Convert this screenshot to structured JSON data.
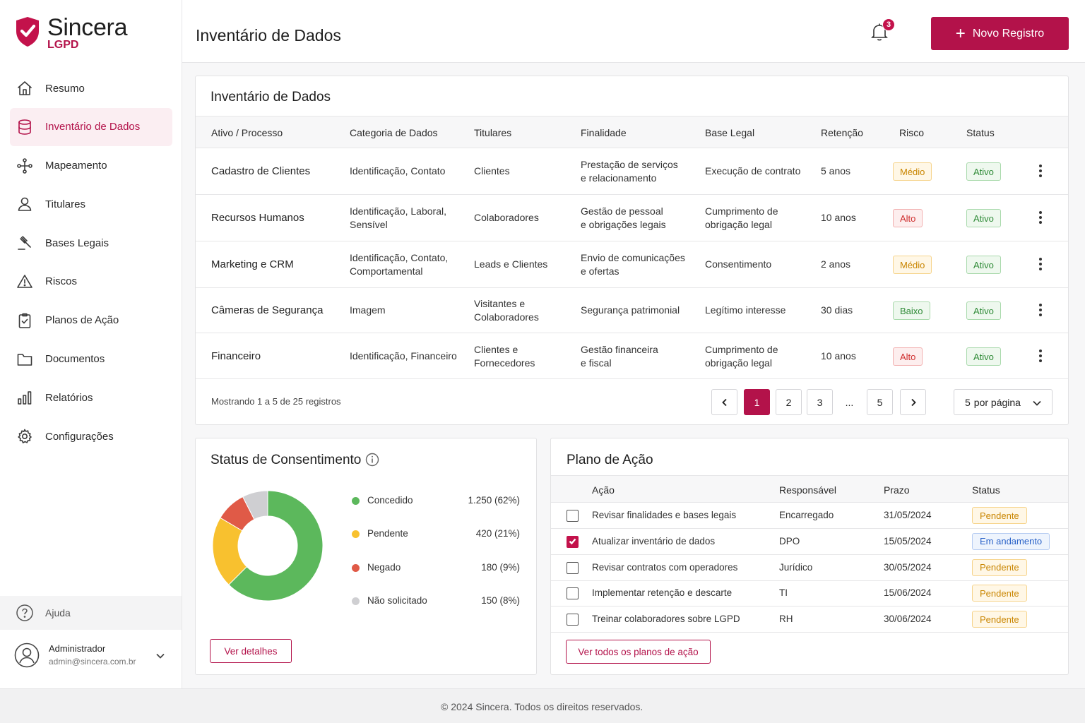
{
  "brand": {
    "name": "Sincera",
    "sub": "LGPD",
    "color": "#b3124a"
  },
  "sidebar": {
    "items": [
      {
        "label": "Resumo",
        "icon": "home-icon"
      },
      {
        "label": "Inventário de Dados",
        "icon": "database-icon",
        "active": true
      },
      {
        "label": "Mapeamento",
        "icon": "flow-icon"
      },
      {
        "label": "Titulares",
        "icon": "user-icon"
      },
      {
        "label": "Bases Legais",
        "icon": "gavel-icon"
      },
      {
        "label": "Riscos",
        "icon": "warning-icon"
      },
      {
        "label": "Planos de Ação",
        "icon": "clipboard-icon"
      },
      {
        "label": "Documentos",
        "icon": "folder-icon"
      },
      {
        "label": "Relatórios",
        "icon": "bar-chart-icon"
      },
      {
        "label": "Configurações",
        "icon": "gear-icon"
      }
    ],
    "help": "Ajuda",
    "user": {
      "name": "Administrador",
      "email": "admin@sincera.com.br"
    }
  },
  "header": {
    "title": "Inventário de Dados",
    "notifications": "3",
    "new_button": "Novo Registro"
  },
  "inventory": {
    "title": "Inventário de Dados",
    "columns": [
      "Ativo / Processo",
      "Categoria de Dados",
      "Titulares",
      "Finalidade",
      "Base Legal",
      "Retenção",
      "Risco",
      "Status"
    ],
    "rows": [
      {
        "asset": "Cadastro de Clientes",
        "category": "Identificação, Contato",
        "holders": "Clientes",
        "purpose": "Prestação de serviços\ne relacionamento",
        "legal": "Execução de contrato",
        "retention": "5 anos",
        "risk": "Médio",
        "risk_level": "medio",
        "status": "Ativo"
      },
      {
        "asset": "Recursos Humanos",
        "category": "Identificação, Laboral,\nSensível",
        "holders": "Colaboradores",
        "purpose": "Gestão de pessoal\ne obrigações legais",
        "legal": "Cumprimento de\nobrigação legal",
        "retention": "10 anos",
        "risk": "Alto",
        "risk_level": "alto",
        "status": "Ativo"
      },
      {
        "asset": "Marketing e CRM",
        "category": "Identificação, Contato,\nComportamental",
        "holders": "Leads e Clientes",
        "purpose": "Envio de comunicações\ne ofertas",
        "legal": "Consentimento",
        "retention": "2 anos",
        "risk": "Médio",
        "risk_level": "medio",
        "status": "Ativo"
      },
      {
        "asset": "Câmeras de Segurança",
        "category": "Imagem",
        "holders": "Visitantes e\nColaboradores",
        "purpose": "Segurança patrimonial",
        "legal": "Legítimo interesse",
        "retention": "30 dias",
        "risk": "Baixo",
        "risk_level": "baixo",
        "status": "Ativo"
      },
      {
        "asset": "Financeiro",
        "category": "Identificação, Financeiro",
        "holders": "Clientes e\nFornecedores",
        "purpose": "Gestão financeira\ne fiscal",
        "legal": "Cumprimento de\nobrigação legal",
        "retention": "10 anos",
        "risk": "Alto",
        "risk_level": "alto",
        "status": "Ativo"
      }
    ],
    "showing": "Mostrando 1 a 5 de 25 registros",
    "pages": [
      "1",
      "2",
      "3",
      "...",
      "5"
    ],
    "current_page": "1",
    "per_page_value": "5",
    "per_page_label": "por página"
  },
  "consent": {
    "title": "Status de Consentimento",
    "chart_data": {
      "type": "pie",
      "categories": [
        "Concedido",
        "Pendente",
        "Negado",
        "Não solicitado"
      ],
      "values": [
        1250,
        420,
        180,
        150
      ],
      "percentages": [
        62,
        21,
        9,
        8
      ],
      "colors": [
        "#5cb85c",
        "#f8c12f",
        "#e05a47",
        "#cfcfd2"
      ],
      "labels": [
        "1.250 (62%)",
        "420 (21%)",
        "180 (9%)",
        "150 (8%)"
      ]
    },
    "button": "Ver detalhes"
  },
  "plan": {
    "title": "Plano de Ação",
    "columns": [
      "Ação",
      "Responsável",
      "Prazo",
      "Status"
    ],
    "rows": [
      {
        "action": "Revisar finalidades e bases legais",
        "owner": "Encarregado",
        "due": "31/05/2024",
        "status": "Pendente",
        "kind": "pend",
        "checked": false
      },
      {
        "action": "Atualizar inventário de dados",
        "owner": "DPO",
        "due": "15/05/2024",
        "status": "Em andamento",
        "kind": "and",
        "checked": true
      },
      {
        "action": "Revisar contratos com operadores",
        "owner": "Jurídico",
        "due": "30/05/2024",
        "status": "Pendente",
        "kind": "pend",
        "checked": false
      },
      {
        "action": "Implementar retenção e descarte",
        "owner": "TI",
        "due": "15/06/2024",
        "status": "Pendente",
        "kind": "pend",
        "checked": false
      },
      {
        "action": "Treinar colaboradores sobre LGPD",
        "owner": "RH",
        "due": "30/06/2024",
        "status": "Pendente",
        "kind": "pend",
        "checked": false
      }
    ],
    "button": "Ver todos os planos de ação"
  },
  "footer": "© 2024 Sincera. Todos os direitos reservados."
}
